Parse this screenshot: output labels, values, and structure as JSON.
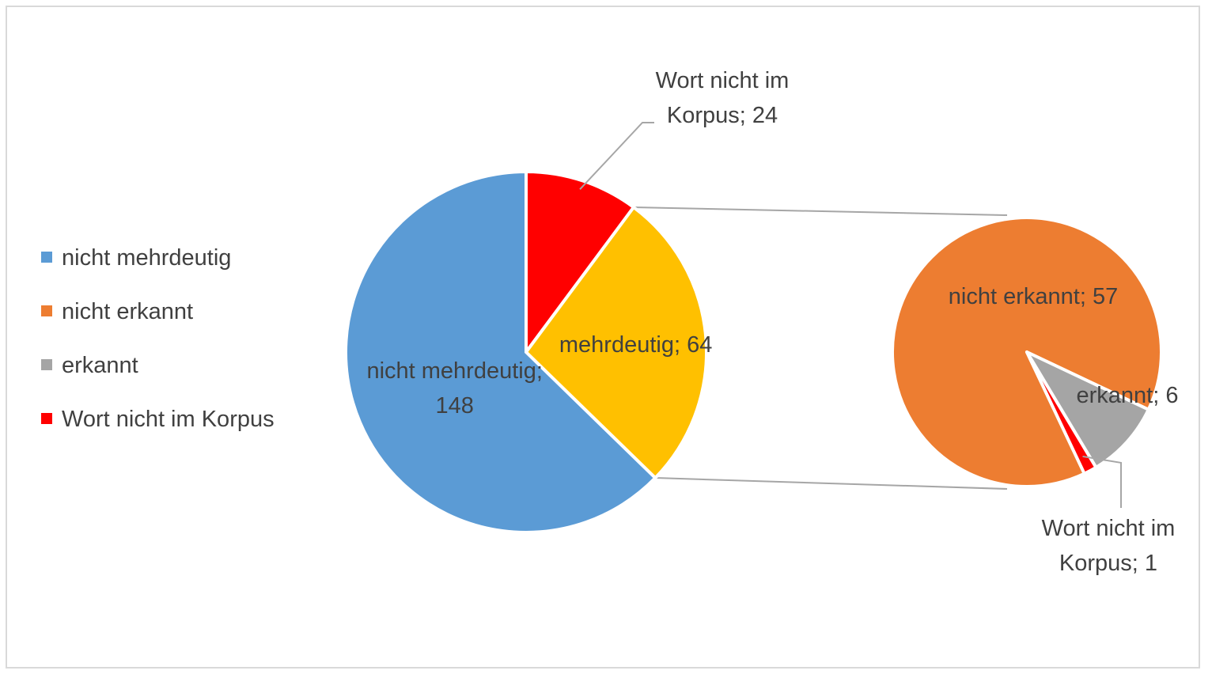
{
  "chart_data": {
    "type": "pie",
    "subtype": "pie-of-pie",
    "legend_position": "left",
    "legend": [
      {
        "label": "nicht mehrdeutig",
        "color": "#5b9bd5"
      },
      {
        "label": "nicht erkannt",
        "color": "#ed7d31"
      },
      {
        "label": "erkannt",
        "color": "#a5a5a5"
      },
      {
        "label": "Wort nicht im Korpus",
        "color": "#ff0000"
      }
    ],
    "main_pie": {
      "slices": [
        {
          "name": "nicht mehrdeutig",
          "value": 148,
          "color": "#5b9bd5",
          "label_lines": [
            "nicht mehrdeutig;",
            "148"
          ]
        },
        {
          "name": "Wort nicht im Korpus",
          "value": 24,
          "color": "#ff0000",
          "label_lines": [
            "Wort nicht im",
            "Korpus; 24"
          ]
        },
        {
          "name": "mehrdeutig",
          "value": 64,
          "color": "#ffc000",
          "label_lines": [
            "mehrdeutig; 64"
          ]
        }
      ]
    },
    "secondary_pie": {
      "parent": "mehrdeutig",
      "slices": [
        {
          "name": "nicht erkannt",
          "value": 57,
          "color": "#ed7d31",
          "label_lines": [
            "nicht erkannt; 57"
          ]
        },
        {
          "name": "erkannt",
          "value": 6,
          "color": "#a5a5a5",
          "label_lines": [
            "erkannt; 6"
          ]
        },
        {
          "name": "Wort nicht im Korpus",
          "value": 1,
          "color": "#ff0000",
          "label_lines": [
            "Wort nicht im",
            "Korpus; 1"
          ]
        }
      ]
    }
  }
}
